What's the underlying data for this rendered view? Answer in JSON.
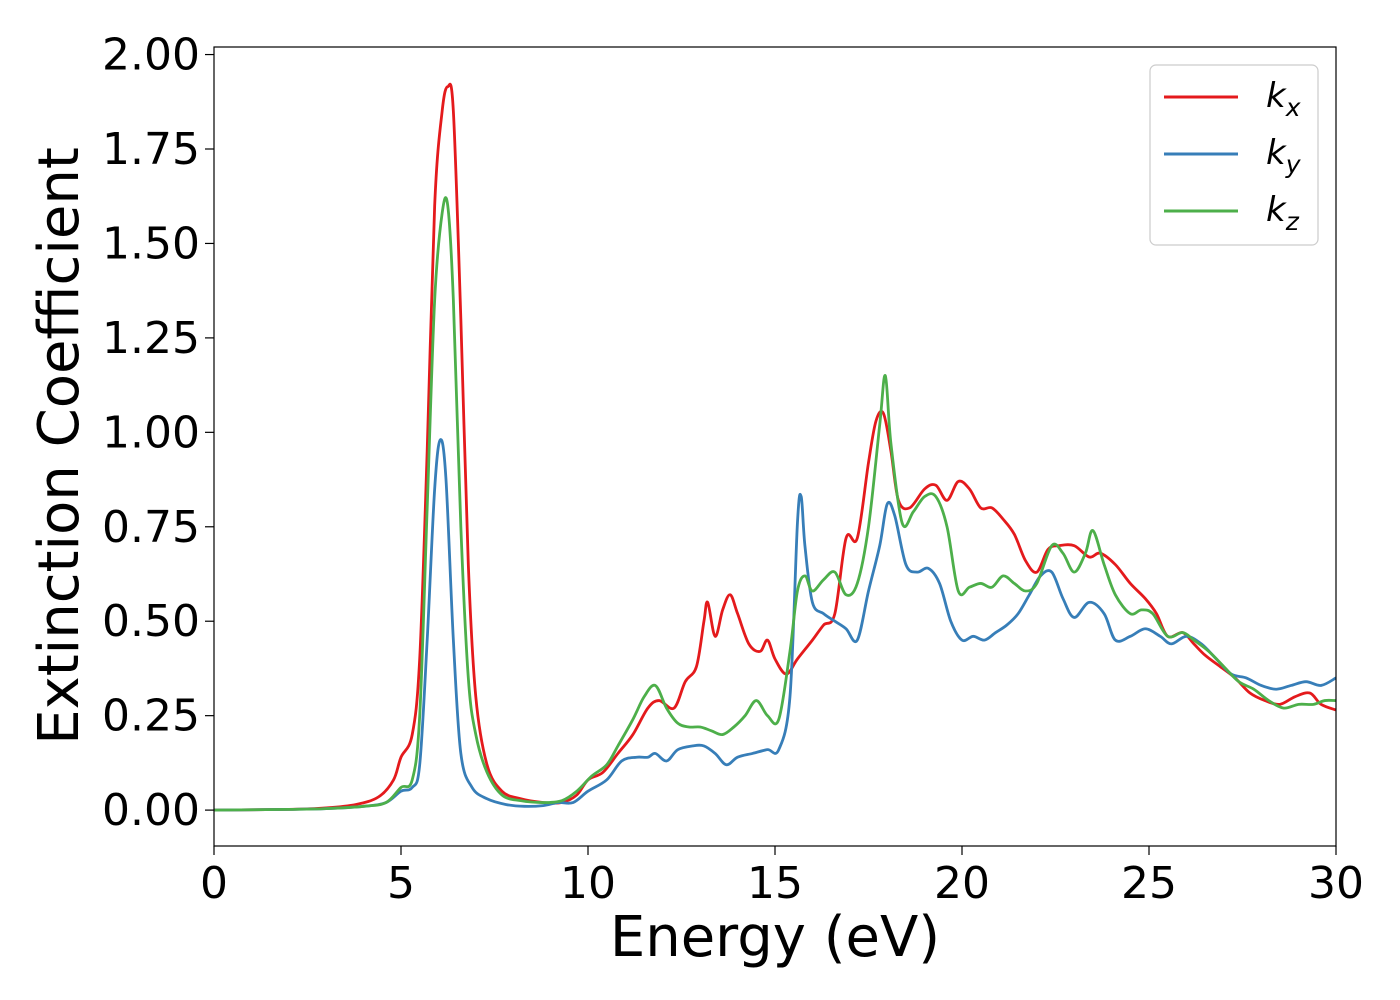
{
  "chart_data": {
    "type": "line",
    "title": "",
    "xlabel": "Energy (eV)",
    "ylabel": "Extinction Coefficient",
    "xlim": [
      0,
      30
    ],
    "ylim": [
      -0.095,
      2.02
    ],
    "xticks": [
      0,
      5,
      10,
      15,
      20,
      25,
      30
    ],
    "xtick_labels": [
      "0",
      "5",
      "10",
      "15",
      "20",
      "25",
      "30"
    ],
    "yticks": [
      0,
      0.25,
      0.5,
      0.75,
      1.0,
      1.25,
      1.5,
      1.75,
      2.0
    ],
    "ytick_labels": [
      "0.00",
      "0.25",
      "0.50",
      "0.75",
      "1.00",
      "1.25",
      "1.50",
      "1.75",
      "2.00"
    ],
    "grid": false,
    "legend_position": "top-right",
    "series": [
      {
        "name": "k_x",
        "label_base": "k",
        "label_sub": "x",
        "color": "#e41a1c",
        "points": [
          [
            0,
            0.0
          ],
          [
            2,
            0.002
          ],
          [
            3,
            0.006
          ],
          [
            3.8,
            0.015
          ],
          [
            4.4,
            0.035
          ],
          [
            4.8,
            0.08
          ],
          [
            5.0,
            0.14
          ],
          [
            5.3,
            0.2
          ],
          [
            5.5,
            0.4
          ],
          [
            5.7,
            0.95
          ],
          [
            5.9,
            1.6
          ],
          [
            6.1,
            1.85
          ],
          [
            6.25,
            1.915
          ],
          [
            6.4,
            1.85
          ],
          [
            6.6,
            1.3
          ],
          [
            6.8,
            0.65
          ],
          [
            7.0,
            0.3
          ],
          [
            7.3,
            0.12
          ],
          [
            7.7,
            0.05
          ],
          [
            8.2,
            0.03
          ],
          [
            8.8,
            0.02
          ],
          [
            9.3,
            0.02
          ],
          [
            9.7,
            0.04
          ],
          [
            10,
            0.08
          ],
          [
            10.4,
            0.1
          ],
          [
            10.8,
            0.15
          ],
          [
            11.2,
            0.2
          ],
          [
            11.6,
            0.27
          ],
          [
            11.9,
            0.29
          ],
          [
            12.3,
            0.27
          ],
          [
            12.6,
            0.34
          ],
          [
            12.9,
            0.38
          ],
          [
            13.1,
            0.5
          ],
          [
            13.2,
            0.55
          ],
          [
            13.4,
            0.46
          ],
          [
            13.6,
            0.53
          ],
          [
            13.8,
            0.57
          ],
          [
            14.0,
            0.52
          ],
          [
            14.3,
            0.44
          ],
          [
            14.6,
            0.42
          ],
          [
            14.8,
            0.45
          ],
          [
            15.0,
            0.4
          ],
          [
            15.3,
            0.36
          ],
          [
            15.6,
            0.4
          ],
          [
            16.0,
            0.45
          ],
          [
            16.3,
            0.49
          ],
          [
            16.6,
            0.52
          ],
          [
            16.9,
            0.72
          ],
          [
            17.2,
            0.72
          ],
          [
            17.5,
            0.92
          ],
          [
            17.7,
            1.03
          ],
          [
            17.9,
            1.05
          ],
          [
            18.1,
            0.95
          ],
          [
            18.3,
            0.82
          ],
          [
            18.6,
            0.8
          ],
          [
            19.0,
            0.85
          ],
          [
            19.3,
            0.86
          ],
          [
            19.6,
            0.82
          ],
          [
            19.9,
            0.87
          ],
          [
            20.2,
            0.85
          ],
          [
            20.5,
            0.8
          ],
          [
            20.8,
            0.8
          ],
          [
            21.1,
            0.77
          ],
          [
            21.4,
            0.73
          ],
          [
            21.7,
            0.66
          ],
          [
            22.0,
            0.63
          ],
          [
            22.3,
            0.69
          ],
          [
            22.6,
            0.7
          ],
          [
            23.0,
            0.7
          ],
          [
            23.4,
            0.67
          ],
          [
            23.7,
            0.68
          ],
          [
            24.1,
            0.65
          ],
          [
            24.5,
            0.6
          ],
          [
            24.9,
            0.56
          ],
          [
            25.2,
            0.52
          ],
          [
            25.5,
            0.46
          ],
          [
            25.9,
            0.47
          ],
          [
            26.2,
            0.44
          ],
          [
            26.5,
            0.41
          ],
          [
            26.9,
            0.38
          ],
          [
            27.3,
            0.35
          ],
          [
            27.7,
            0.31
          ],
          [
            28.1,
            0.29
          ],
          [
            28.5,
            0.28
          ],
          [
            28.9,
            0.3
          ],
          [
            29.3,
            0.31
          ],
          [
            29.6,
            0.28
          ],
          [
            30,
            0.265
          ]
        ]
      },
      {
        "name": "k_y",
        "label_base": "k",
        "label_sub": "y",
        "color": "#377eb8",
        "points": [
          [
            0,
            0.0
          ],
          [
            2,
            0.002
          ],
          [
            3,
            0.004
          ],
          [
            4,
            0.01
          ],
          [
            4.6,
            0.02
          ],
          [
            5.0,
            0.05
          ],
          [
            5.3,
            0.06
          ],
          [
            5.5,
            0.12
          ],
          [
            5.7,
            0.45
          ],
          [
            5.9,
            0.85
          ],
          [
            6.05,
            0.98
          ],
          [
            6.2,
            0.88
          ],
          [
            6.4,
            0.45
          ],
          [
            6.6,
            0.15
          ],
          [
            6.9,
            0.06
          ],
          [
            7.3,
            0.03
          ],
          [
            7.8,
            0.015
          ],
          [
            8.3,
            0.01
          ],
          [
            8.8,
            0.012
          ],
          [
            9.2,
            0.02
          ],
          [
            9.6,
            0.02
          ],
          [
            10,
            0.05
          ],
          [
            10.5,
            0.08
          ],
          [
            10.9,
            0.13
          ],
          [
            11.3,
            0.14
          ],
          [
            11.6,
            0.14
          ],
          [
            11.8,
            0.15
          ],
          [
            12.1,
            0.13
          ],
          [
            12.4,
            0.16
          ],
          [
            12.8,
            0.17
          ],
          [
            13.1,
            0.17
          ],
          [
            13.4,
            0.15
          ],
          [
            13.7,
            0.12
          ],
          [
            14.0,
            0.14
          ],
          [
            14.4,
            0.15
          ],
          [
            14.8,
            0.16
          ],
          [
            15.1,
            0.16
          ],
          [
            15.4,
            0.3
          ],
          [
            15.6,
            0.76
          ],
          [
            15.7,
            0.83
          ],
          [
            15.8,
            0.7
          ],
          [
            16.0,
            0.55
          ],
          [
            16.3,
            0.52
          ],
          [
            16.6,
            0.5
          ],
          [
            16.9,
            0.48
          ],
          [
            17.2,
            0.45
          ],
          [
            17.5,
            0.58
          ],
          [
            17.8,
            0.7
          ],
          [
            18.0,
            0.81
          ],
          [
            18.2,
            0.78
          ],
          [
            18.5,
            0.65
          ],
          [
            18.8,
            0.63
          ],
          [
            19.1,
            0.64
          ],
          [
            19.4,
            0.6
          ],
          [
            19.7,
            0.5
          ],
          [
            20.0,
            0.45
          ],
          [
            20.3,
            0.46
          ],
          [
            20.6,
            0.45
          ],
          [
            20.9,
            0.47
          ],
          [
            21.2,
            0.49
          ],
          [
            21.5,
            0.52
          ],
          [
            21.8,
            0.57
          ],
          [
            22.1,
            0.62
          ],
          [
            22.4,
            0.63
          ],
          [
            22.7,
            0.56
          ],
          [
            23.0,
            0.51
          ],
          [
            23.4,
            0.55
          ],
          [
            23.8,
            0.52
          ],
          [
            24.1,
            0.45
          ],
          [
            24.5,
            0.46
          ],
          [
            24.9,
            0.48
          ],
          [
            25.3,
            0.46
          ],
          [
            25.6,
            0.44
          ],
          [
            26.0,
            0.46
          ],
          [
            26.4,
            0.44
          ],
          [
            26.8,
            0.4
          ],
          [
            27.2,
            0.36
          ],
          [
            27.6,
            0.35
          ],
          [
            28.0,
            0.33
          ],
          [
            28.4,
            0.32
          ],
          [
            28.8,
            0.33
          ],
          [
            29.2,
            0.34
          ],
          [
            29.6,
            0.33
          ],
          [
            30,
            0.35
          ]
        ]
      },
      {
        "name": "k_z",
        "label_base": "k",
        "label_sub": "z",
        "color": "#4daf4a",
        "points": [
          [
            0,
            0.0
          ],
          [
            2,
            0.002
          ],
          [
            3,
            0.004
          ],
          [
            4,
            0.01
          ],
          [
            4.6,
            0.02
          ],
          [
            5.0,
            0.06
          ],
          [
            5.3,
            0.08
          ],
          [
            5.5,
            0.25
          ],
          [
            5.7,
            0.8
          ],
          [
            5.9,
            1.35
          ],
          [
            6.1,
            1.58
          ],
          [
            6.25,
            1.6
          ],
          [
            6.4,
            1.35
          ],
          [
            6.6,
            0.75
          ],
          [
            6.8,
            0.35
          ],
          [
            7.0,
            0.2
          ],
          [
            7.3,
            0.1
          ],
          [
            7.7,
            0.04
          ],
          [
            8.2,
            0.025
          ],
          [
            8.8,
            0.02
          ],
          [
            9.3,
            0.025
          ],
          [
            9.7,
            0.05
          ],
          [
            10.1,
            0.09
          ],
          [
            10.5,
            0.12
          ],
          [
            10.8,
            0.17
          ],
          [
            11.2,
            0.24
          ],
          [
            11.5,
            0.3
          ],
          [
            11.8,
            0.33
          ],
          [
            12.1,
            0.27
          ],
          [
            12.4,
            0.23
          ],
          [
            12.7,
            0.22
          ],
          [
            13.0,
            0.22
          ],
          [
            13.3,
            0.21
          ],
          [
            13.6,
            0.2
          ],
          [
            13.9,
            0.22
          ],
          [
            14.2,
            0.25
          ],
          [
            14.5,
            0.29
          ],
          [
            14.8,
            0.25
          ],
          [
            15.1,
            0.24
          ],
          [
            15.4,
            0.42
          ],
          [
            15.6,
            0.58
          ],
          [
            15.8,
            0.62
          ],
          [
            16.0,
            0.58
          ],
          [
            16.3,
            0.61
          ],
          [
            16.6,
            0.63
          ],
          [
            16.9,
            0.57
          ],
          [
            17.2,
            0.6
          ],
          [
            17.5,
            0.75
          ],
          [
            17.8,
            1.02
          ],
          [
            17.95,
            1.15
          ],
          [
            18.1,
            0.97
          ],
          [
            18.4,
            0.76
          ],
          [
            18.7,
            0.79
          ],
          [
            19.0,
            0.83
          ],
          [
            19.3,
            0.83
          ],
          [
            19.6,
            0.75
          ],
          [
            19.9,
            0.58
          ],
          [
            20.2,
            0.59
          ],
          [
            20.5,
            0.6
          ],
          [
            20.8,
            0.59
          ],
          [
            21.1,
            0.62
          ],
          [
            21.4,
            0.6
          ],
          [
            21.7,
            0.58
          ],
          [
            22.0,
            0.6
          ],
          [
            22.4,
            0.7
          ],
          [
            22.7,
            0.68
          ],
          [
            23.0,
            0.63
          ],
          [
            23.3,
            0.68
          ],
          [
            23.5,
            0.74
          ],
          [
            23.8,
            0.65
          ],
          [
            24.1,
            0.57
          ],
          [
            24.5,
            0.52
          ],
          [
            24.8,
            0.53
          ],
          [
            25.1,
            0.52
          ],
          [
            25.5,
            0.46
          ],
          [
            25.9,
            0.47
          ],
          [
            26.2,
            0.45
          ],
          [
            26.6,
            0.42
          ],
          [
            27.0,
            0.38
          ],
          [
            27.4,
            0.34
          ],
          [
            27.8,
            0.32
          ],
          [
            28.2,
            0.29
          ],
          [
            28.6,
            0.27
          ],
          [
            29.0,
            0.28
          ],
          [
            29.4,
            0.28
          ],
          [
            29.7,
            0.29
          ],
          [
            30,
            0.29
          ]
        ]
      }
    ]
  }
}
